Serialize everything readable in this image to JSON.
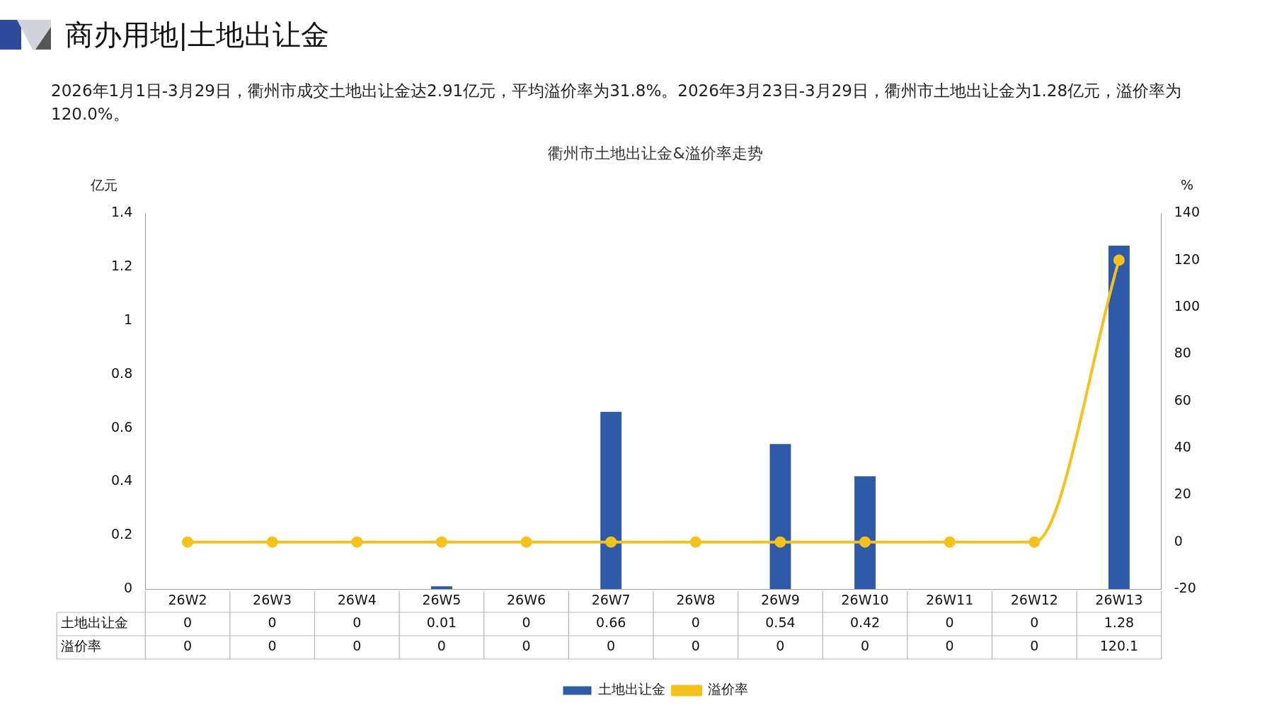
{
  "chart_data": {
    "type": "bar",
    "title": "衢州市土地出让金&溢价率走势",
    "subtitle": "2026年1月1日-3月29日，衢州市成交土地出让金达2.91亿元，平均溢价率为31.8%。2026年3月23日-3月29日，衢州市土地出让金为1.28亿元，溢价率为120.0%。",
    "annotations": [
      "商办用地|土地出让金"
    ],
    "ylabel": "亿元",
    "y2label": "%",
    "categories": [
      "26W2",
      "26W3",
      "26W4",
      "26W5",
      "26W6",
      "26W7",
      "26W8",
      "26W9",
      "26W10",
      "26W11",
      "26W12",
      "26W13"
    ],
    "series": [
      {
        "name": "土地出让金",
        "color": "#2e5aa8",
        "values": [
          0,
          0,
          0,
          0.01,
          0,
          0.66,
          0,
          0.54,
          0.42,
          0,
          0,
          1.28
        ]
      },
      {
        "name": "溢价率",
        "type": "line",
        "axis": "y2",
        "color": "#f5c21b",
        "values": [
          0,
          0,
          0,
          0,
          0,
          0,
          0,
          0,
          0,
          0,
          0,
          120.1
        ]
      }
    ],
    "ylim": [
      0,
      1.4
    ],
    "yticks": [
      0,
      0.2,
      0.4,
      0.6,
      0.8,
      1,
      1.2,
      1.4
    ],
    "y2lim": [
      -20,
      140
    ],
    "y2ticks": [
      -20,
      0,
      20,
      40,
      60,
      80,
      100,
      120,
      140
    ],
    "grid": false,
    "legend": "bottom",
    "marker": "circle",
    "line_style": "solid",
    "data_labels": true
  }
}
